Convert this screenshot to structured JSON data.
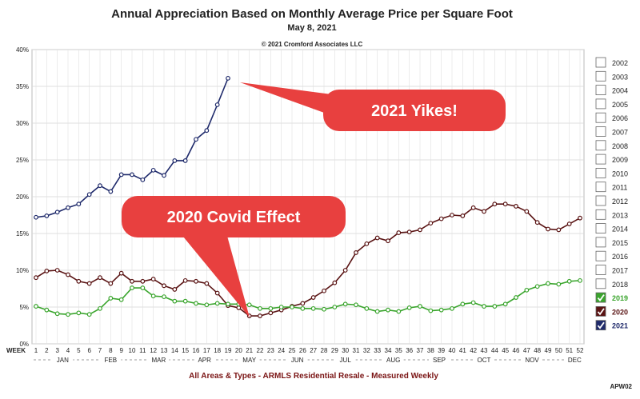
{
  "chart_data": {
    "type": "line",
    "title": "Annual Appreciation Based on Monthly Average Price per Square Foot",
    "subtitle": "May 8, 2021",
    "copyright": "© 2021 Cromford Associates LLC",
    "xlabel": "WEEK",
    "footer": "All Areas & Types - ARMLS Residential Resale - Measured Weekly",
    "code": "APW02",
    "ylim": [
      0,
      40
    ],
    "y_ticks": [
      "0%",
      "5%",
      "10%",
      "15%",
      "20%",
      "25%",
      "30%",
      "35%",
      "40%"
    ],
    "weeks": [
      1,
      2,
      3,
      4,
      5,
      6,
      7,
      8,
      9,
      10,
      11,
      12,
      13,
      14,
      15,
      16,
      17,
      18,
      19,
      20,
      21,
      22,
      23,
      24,
      25,
      26,
      27,
      28,
      29,
      30,
      31,
      32,
      33,
      34,
      35,
      36,
      37,
      38,
      39,
      40,
      41,
      42,
      43,
      44,
      45,
      46,
      47,
      48,
      49,
      50,
      51,
      52
    ],
    "month_labels": [
      {
        "label": "JAN",
        "week": 3.5
      },
      {
        "label": "FEB",
        "week": 8
      },
      {
        "label": "MAR",
        "week": 12.5
      },
      {
        "label": "APR",
        "week": 16.8
      },
      {
        "label": "MAY",
        "week": 21
      },
      {
        "label": "JUN",
        "week": 25.5
      },
      {
        "label": "JUL",
        "week": 30
      },
      {
        "label": "AUG",
        "week": 34.5
      },
      {
        "label": "SEP",
        "week": 38.8
      },
      {
        "label": "OCT",
        "week": 43
      },
      {
        "label": "NOV",
        "week": 47.5
      },
      {
        "label": "DEC",
        "week": 51.5
      }
    ],
    "grid": true,
    "legend_position": "right",
    "legend": [
      "2002",
      "2003",
      "2004",
      "2005",
      "2006",
      "2007",
      "2008",
      "2009",
      "2010",
      "2011",
      "2012",
      "2013",
      "2014",
      "2015",
      "2016",
      "2017",
      "2018",
      "2019",
      "2020",
      "2021"
    ],
    "legend_checked": {
      "2019": "#3aa52d",
      "2020": "#5a1414",
      "2021": "#1f2a6b"
    },
    "series": [
      {
        "name": "2021",
        "color": "#1f2a6b",
        "x": [
          1,
          2,
          3,
          4,
          5,
          6,
          7,
          8,
          9,
          10,
          11,
          12,
          13,
          14,
          15,
          16,
          17,
          18,
          19
        ],
        "values": [
          17.2,
          17.4,
          17.9,
          18.5,
          19.0,
          20.3,
          21.5,
          20.7,
          23.0,
          23.0,
          22.3,
          23.6,
          22.9,
          24.9,
          24.9,
          27.8,
          29.0,
          32.5,
          36.1
        ]
      },
      {
        "name": "2020",
        "color": "#5a1414",
        "x": [
          1,
          2,
          3,
          4,
          5,
          6,
          7,
          8,
          9,
          10,
          11,
          12,
          13,
          14,
          15,
          16,
          17,
          18,
          19,
          20,
          21,
          22,
          23,
          24,
          25,
          26,
          27,
          28,
          29,
          30,
          31,
          32,
          33,
          34,
          35,
          36,
          37,
          38,
          39,
          40,
          41,
          42,
          43,
          44,
          45,
          46,
          47,
          48,
          49,
          50,
          51,
          52
        ],
        "values": [
          9.0,
          9.9,
          10.0,
          9.4,
          8.5,
          8.2,
          9.0,
          8.2,
          9.6,
          8.5,
          8.5,
          8.8,
          7.9,
          7.4,
          8.6,
          8.5,
          8.2,
          6.9,
          5.2,
          4.9,
          3.8,
          3.8,
          4.2,
          4.6,
          5.1,
          5.5,
          6.3,
          7.2,
          8.3,
          10.0,
          12.4,
          13.6,
          14.4,
          14.0,
          15.1,
          15.2,
          15.5,
          16.4,
          17.0,
          17.5,
          17.4,
          18.5,
          18.0,
          19.0,
          19.0,
          18.7,
          18.0,
          16.5,
          15.6,
          15.5,
          16.3,
          17.1
        ]
      },
      {
        "name": "2019",
        "color": "#3aa52d",
        "x": [
          1,
          2,
          3,
          4,
          5,
          6,
          7,
          8,
          9,
          10,
          11,
          12,
          13,
          14,
          15,
          16,
          17,
          18,
          19,
          20,
          21,
          22,
          23,
          24,
          25,
          26,
          27,
          28,
          29,
          30,
          31,
          32,
          33,
          34,
          35,
          36,
          37,
          38,
          39,
          40,
          41,
          42,
          43,
          44,
          45,
          46,
          47,
          48,
          49,
          50,
          51,
          52
        ],
        "values": [
          5.1,
          4.6,
          4.1,
          4.0,
          4.2,
          4.0,
          4.8,
          6.2,
          6.0,
          7.6,
          7.6,
          6.5,
          6.4,
          5.8,
          5.8,
          5.5,
          5.3,
          5.5,
          5.4,
          5.4,
          5.3,
          4.8,
          4.8,
          5.0,
          5.0,
          4.8,
          4.8,
          4.7,
          5.0,
          5.4,
          5.3,
          4.8,
          4.4,
          4.6,
          4.4,
          4.9,
          5.1,
          4.5,
          4.6,
          4.8,
          5.4,
          5.6,
          5.1,
          5.1,
          5.4,
          6.3,
          7.3,
          7.8,
          8.2,
          8.1,
          8.5,
          8.6
        ]
      }
    ],
    "annotations": [
      {
        "text": "2021 Yikes!",
        "points_to_week": 20,
        "points_to_value": 32.5
      },
      {
        "text": "2020 Covid Effect",
        "points_to_week": 22,
        "points_to_value": 3.5
      }
    ]
  }
}
